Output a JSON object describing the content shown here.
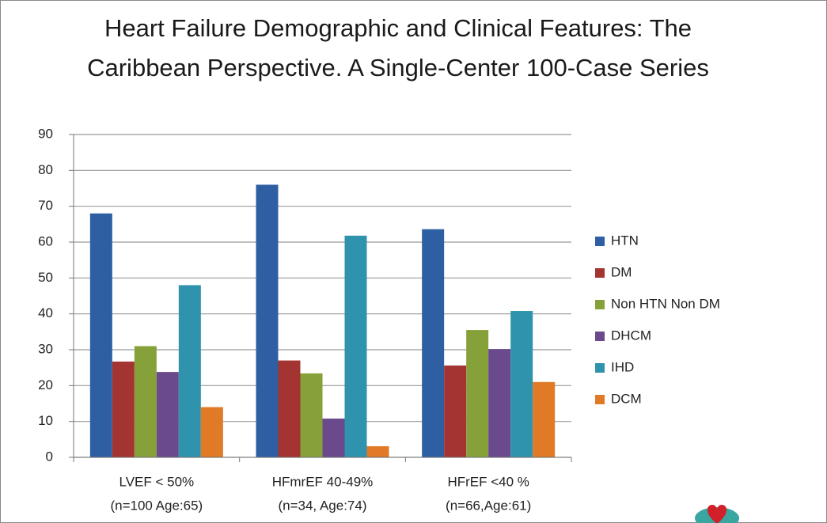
{
  "chart_data": {
    "type": "bar",
    "title": [
      "Heart Failure Demographic and Clinical Features: The",
      "Caribbean Perspective. A Single-Center 100-Case Series"
    ],
    "categories": [
      [
        "LVEF < 50%",
        "(n=100 Age:65)"
      ],
      [
        "HFmrEF 40-49%",
        "(n=34, Age:74)"
      ],
      [
        "HFrEF <40 %",
        "(n=66,Age:61)"
      ]
    ],
    "series": [
      {
        "name": "HTN",
        "color": "#2e5fa3",
        "values": [
          68,
          76,
          63.6
        ]
      },
      {
        "name": "DM",
        "color": "#a33431",
        "values": [
          26.7,
          27,
          25.6
        ]
      },
      {
        "name": "Non HTN Non DM",
        "color": "#86a13a",
        "values": [
          31,
          23.4,
          35.5
        ]
      },
      {
        "name": "DHCM",
        "color": "#6a4a8c",
        "values": [
          23.8,
          10.8,
          30.2
        ]
      },
      {
        "name": "IHD",
        "color": "#2f93ad",
        "values": [
          48,
          61.8,
          40.8
        ]
      },
      {
        "name": "DCM",
        "color": "#e07a26",
        "values": [
          14,
          3.1,
          21
        ]
      }
    ],
    "ylim": [
      0,
      90
    ],
    "yticks": [
      0,
      10,
      20,
      30,
      40,
      50,
      60,
      70,
      80,
      90
    ],
    "grid": true,
    "legend": "right"
  }
}
